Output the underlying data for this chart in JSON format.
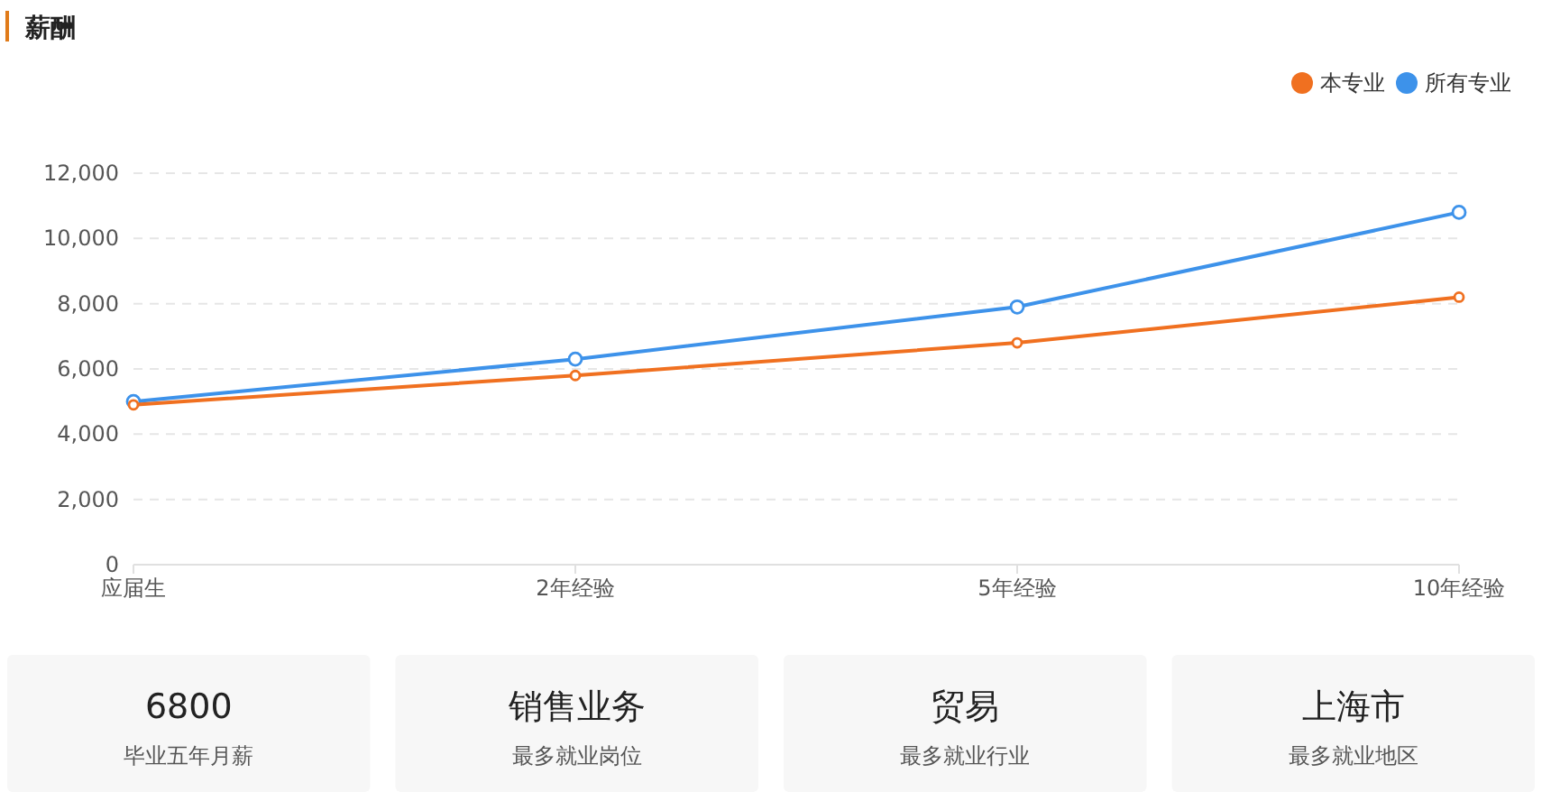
{
  "chart_data": [
    {
      "type": "line",
      "title": "薪酬",
      "categories": [
        "应届生",
        "2年经验",
        "5年经验",
        "10年经验"
      ],
      "series": [
        {
          "name": "本专业",
          "color": "#f07020",
          "values": [
            4900,
            5800,
            6800,
            8200
          ]
        },
        {
          "name": "所有专业",
          "color": "#3d92ea",
          "values": [
            5000,
            6300,
            7900,
            10800
          ]
        }
      ],
      "ylim": [
        0,
        12000
      ],
      "yticks": [
        {
          "value": 0,
          "label": "0"
        },
        {
          "value": 2000,
          "label": "2,000"
        },
        {
          "value": 4000,
          "label": "4,000"
        },
        {
          "value": 6000,
          "label": "6,000"
        },
        {
          "value": 8000,
          "label": "8,000"
        },
        {
          "value": 10000,
          "label": "10,000"
        },
        {
          "value": 12000,
          "label": "12,000"
        }
      ],
      "grid": "y",
      "legend": "top right",
      "marker": "circle",
      "line_style": "solid"
    },
    {
      "type": "other",
      "annotations": [
        "6800",
        "毕业五年月薪",
        "销售业务",
        "最多就业岗位",
        "贸易",
        "最多就业行业",
        "上海市",
        "最多就业地区"
      ]
    }
  ]
}
